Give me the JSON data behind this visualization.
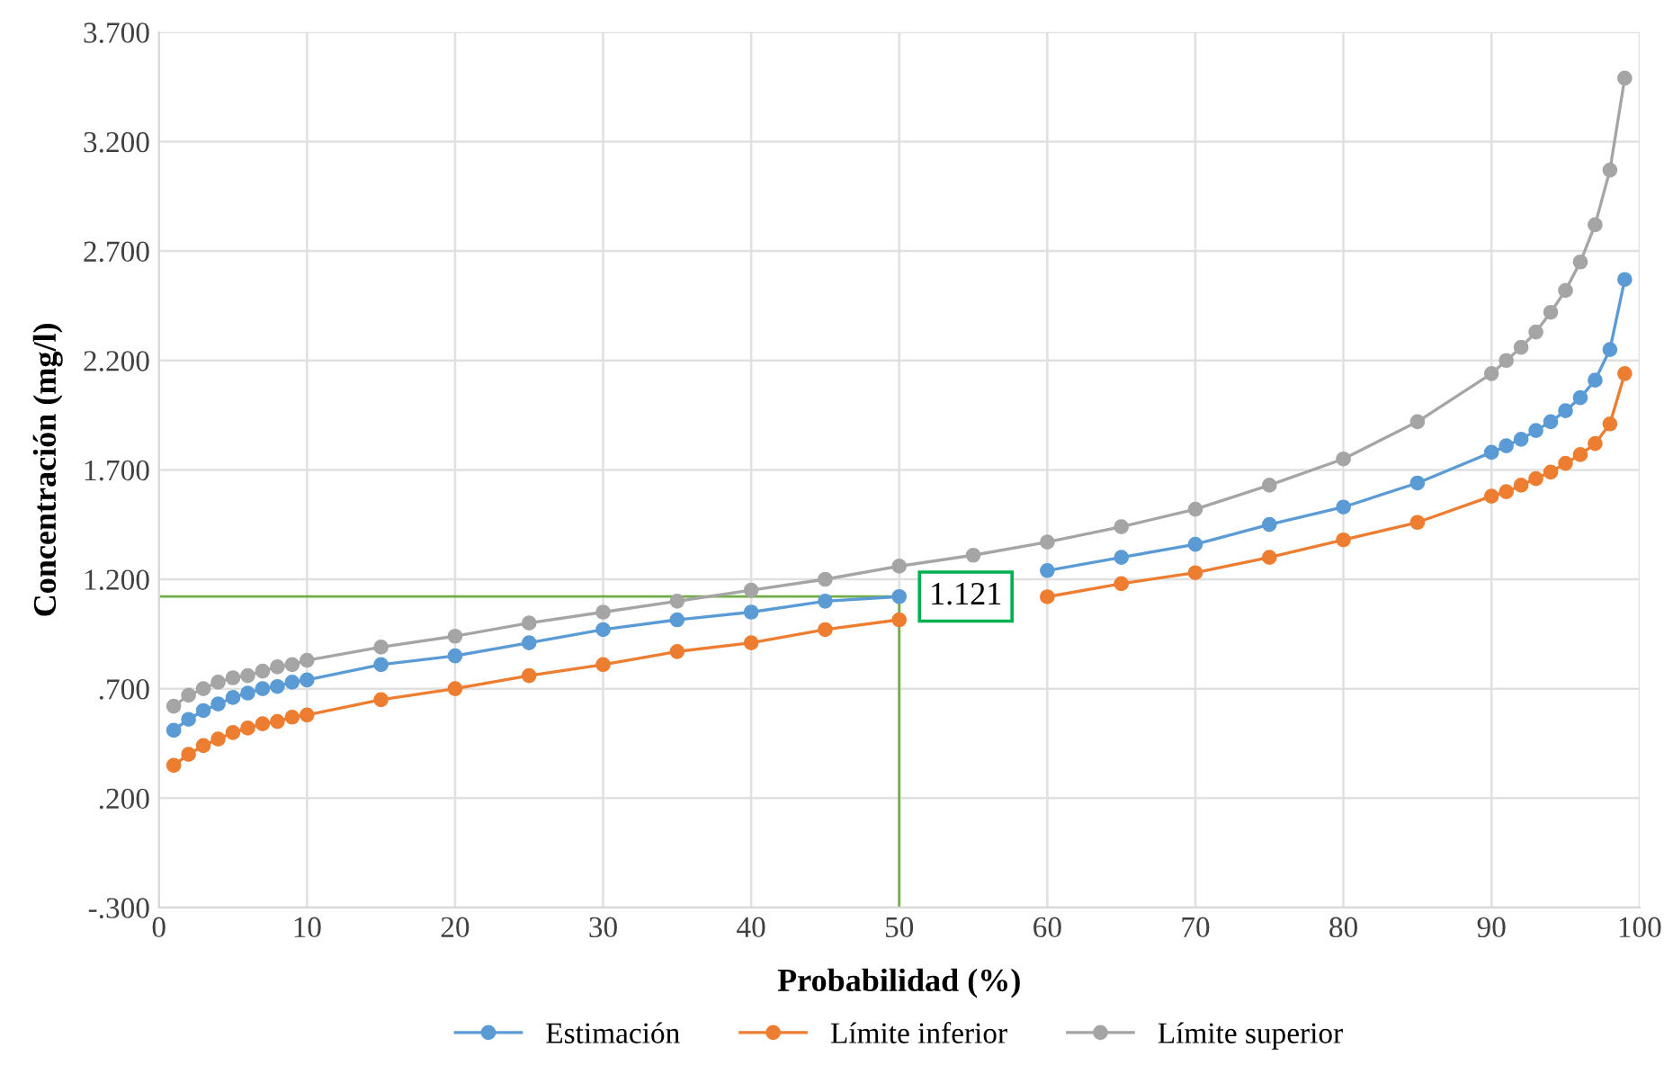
{
  "chart_data": {
    "type": "line",
    "xlabel": "Probabilidad (%)",
    "ylabel": "Concentración (mg/l)",
    "x": [
      1,
      2,
      3,
      4,
      5,
      6,
      7,
      8,
      9,
      10,
      15,
      20,
      25,
      30,
      35,
      40,
      45,
      50,
      55,
      60,
      65,
      70,
      75,
      80,
      85,
      90,
      91,
      92,
      93,
      94,
      95,
      96,
      97,
      98,
      99
    ],
    "series": [
      {
        "name": "Estimación",
        "color": "#5b9bd5",
        "values": [
          0.51,
          0.56,
          0.6,
          0.63,
          0.66,
          0.68,
          0.7,
          0.71,
          0.73,
          0.74,
          0.81,
          0.85,
          0.91,
          0.97,
          1.015,
          1.05,
          1.1,
          1.121,
          null,
          1.24,
          1.3,
          1.36,
          1.45,
          1.53,
          1.64,
          1.78,
          1.81,
          1.84,
          1.88,
          1.92,
          1.97,
          2.03,
          2.11,
          2.25,
          2.57
        ]
      },
      {
        "name": "Límite inferior",
        "color": "#ed7d31",
        "values": [
          0.35,
          0.4,
          0.44,
          0.47,
          0.5,
          0.52,
          0.54,
          0.55,
          0.57,
          0.58,
          0.65,
          0.7,
          0.76,
          0.81,
          0.87,
          0.91,
          0.97,
          1.015,
          null,
          1.12,
          1.18,
          1.23,
          1.3,
          1.38,
          1.46,
          1.58,
          1.6,
          1.63,
          1.66,
          1.69,
          1.73,
          1.77,
          1.82,
          1.91,
          2.14
        ]
      },
      {
        "name": "Límite superior",
        "color": "#a5a5a5",
        "values": [
          0.62,
          0.67,
          0.7,
          0.73,
          0.75,
          0.76,
          0.78,
          0.8,
          0.81,
          0.83,
          0.89,
          0.94,
          1.0,
          1.05,
          1.1,
          1.15,
          1.2,
          1.26,
          1.31,
          1.37,
          1.44,
          1.52,
          1.63,
          1.75,
          1.92,
          2.14,
          2.2,
          2.26,
          2.33,
          2.42,
          2.52,
          2.65,
          2.82,
          3.07,
          3.49
        ]
      }
    ],
    "xlim": [
      0,
      100
    ],
    "xticks": [
      0,
      10,
      20,
      30,
      40,
      50,
      60,
      70,
      80,
      90,
      100
    ],
    "ylim": [
      -0.3,
      3.7
    ],
    "yticks": [
      {
        "value": -0.3,
        "label": "-.300"
      },
      {
        "value": 0.2,
        "label": ".200"
      },
      {
        "value": 0.7,
        "label": ".700"
      },
      {
        "value": 1.2,
        "label": "1.200"
      },
      {
        "value": 1.7,
        "label": "1.700"
      },
      {
        "value": 2.2,
        "label": "2.200"
      },
      {
        "value": 2.7,
        "label": "2.700"
      },
      {
        "value": 3.2,
        "label": "3.200"
      },
      {
        "value": 3.7,
        "label": "3.700"
      }
    ],
    "annotations": [
      {
        "text": "1.121",
        "x": 50,
        "y": 1.121
      }
    ],
    "grid": true,
    "legend": "bottom",
    "marker": "circle",
    "line_style": "solid"
  }
}
